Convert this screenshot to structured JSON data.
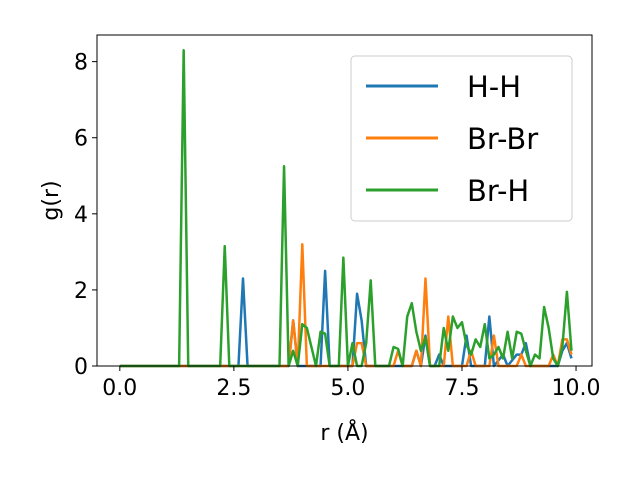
{
  "chart_data": {
    "type": "line",
    "xlabel": "r (Å)",
    "ylabel": "g(r)",
    "xlim": [
      -0.5,
      10.35
    ],
    "ylim": [
      0,
      8.7
    ],
    "xticks": [
      0.0,
      2.5,
      5.0,
      7.5,
      10.0
    ],
    "xtick_labels": [
      "0.0",
      "2.5",
      "5.0",
      "7.5",
      "10.0"
    ],
    "yticks": [
      0,
      2,
      4,
      6,
      8
    ],
    "ytick_labels": [
      "0",
      "2",
      "4",
      "6",
      "8"
    ],
    "grid": false,
    "legend_position": "upper right",
    "series": [
      {
        "name": "H-H",
        "color": "#1f77b4",
        "points": [
          [
            0.0,
            0
          ],
          [
            2.6,
            0
          ],
          [
            2.7,
            2.3
          ],
          [
            2.8,
            0
          ],
          [
            3.7,
            0
          ],
          [
            3.8,
            1.2
          ],
          [
            3.9,
            0
          ],
          [
            4.4,
            0
          ],
          [
            4.5,
            2.5
          ],
          [
            4.6,
            0
          ],
          [
            5.1,
            0
          ],
          [
            5.2,
            1.9
          ],
          [
            5.3,
            1.2
          ],
          [
            5.4,
            0
          ],
          [
            6.4,
            0
          ],
          [
            6.5,
            0.4
          ],
          [
            6.6,
            0
          ],
          [
            6.7,
            0.8
          ],
          [
            6.8,
            0
          ],
          [
            6.9,
            0
          ],
          [
            7.0,
            0.3
          ],
          [
            7.1,
            0
          ],
          [
            7.5,
            0
          ],
          [
            7.6,
            0.8
          ],
          [
            7.7,
            0
          ],
          [
            8.0,
            0
          ],
          [
            8.1,
            1.3
          ],
          [
            8.2,
            0
          ],
          [
            8.4,
            0.3
          ],
          [
            8.5,
            0
          ],
          [
            8.7,
            0.3
          ],
          [
            8.8,
            0.3
          ],
          [
            8.9,
            0.6
          ],
          [
            9.0,
            0
          ],
          [
            9.6,
            0
          ],
          [
            9.7,
            0.4
          ],
          [
            9.8,
            0.6
          ],
          [
            9.9,
            0.2
          ]
        ]
      },
      {
        "name": "Br-Br",
        "color": "#ff7f0e",
        "points": [
          [
            0.0,
            0
          ],
          [
            3.7,
            0
          ],
          [
            3.8,
            1.2
          ],
          [
            3.9,
            0
          ],
          [
            4.0,
            3.2
          ],
          [
            4.1,
            0
          ],
          [
            5.1,
            0
          ],
          [
            5.2,
            0.6
          ],
          [
            5.3,
            0.6
          ],
          [
            5.4,
            0
          ],
          [
            6.0,
            0
          ],
          [
            6.1,
            0.4
          ],
          [
            6.2,
            0
          ],
          [
            6.4,
            0
          ],
          [
            6.5,
            0.4
          ],
          [
            6.6,
            0
          ],
          [
            6.7,
            2.3
          ],
          [
            6.8,
            0
          ],
          [
            7.1,
            0
          ],
          [
            7.2,
            1.3
          ],
          [
            7.3,
            0
          ],
          [
            7.6,
            0
          ],
          [
            7.7,
            0.4
          ],
          [
            7.8,
            0
          ],
          [
            8.1,
            0
          ],
          [
            8.2,
            0.8
          ],
          [
            8.3,
            0
          ],
          [
            8.7,
            0
          ],
          [
            8.8,
            0.3
          ],
          [
            8.9,
            0
          ],
          [
            9.4,
            0
          ],
          [
            9.5,
            0.3
          ],
          [
            9.6,
            0
          ],
          [
            9.7,
            0.7
          ],
          [
            9.8,
            0.7
          ],
          [
            9.9,
            0.3
          ]
        ]
      },
      {
        "name": "Br-H",
        "color": "#2ca02c",
        "points": [
          [
            0.0,
            0
          ],
          [
            1.3,
            0
          ],
          [
            1.4,
            8.3
          ],
          [
            1.5,
            0
          ],
          [
            2.2,
            0
          ],
          [
            2.3,
            3.15
          ],
          [
            2.4,
            0
          ],
          [
            3.5,
            0
          ],
          [
            3.6,
            5.25
          ],
          [
            3.7,
            0
          ],
          [
            3.8,
            0.4
          ],
          [
            3.9,
            0
          ],
          [
            4.0,
            1.1
          ],
          [
            4.1,
            1.0
          ],
          [
            4.2,
            0.5
          ],
          [
            4.3,
            0
          ],
          [
            4.4,
            0.9
          ],
          [
            4.5,
            0.85
          ],
          [
            4.6,
            0
          ],
          [
            4.8,
            0
          ],
          [
            4.9,
            2.85
          ],
          [
            5.0,
            0
          ],
          [
            5.1,
            0.6
          ],
          [
            5.2,
            0
          ],
          [
            5.3,
            0
          ],
          [
            5.4,
            0.6
          ],
          [
            5.5,
            2.25
          ],
          [
            5.6,
            0
          ],
          [
            5.9,
            0
          ],
          [
            6.0,
            0.5
          ],
          [
            6.1,
            0.45
          ],
          [
            6.2,
            0
          ],
          [
            6.3,
            1.3
          ],
          [
            6.4,
            1.65
          ],
          [
            6.5,
            0.9
          ],
          [
            6.6,
            0.4
          ],
          [
            6.7,
            0.75
          ],
          [
            6.8,
            0
          ],
          [
            7.0,
            0
          ],
          [
            7.1,
            1.0
          ],
          [
            7.2,
            0.4
          ],
          [
            7.3,
            1.3
          ],
          [
            7.4,
            1.0
          ],
          [
            7.5,
            1.15
          ],
          [
            7.6,
            0.55
          ],
          [
            7.7,
            0.3
          ],
          [
            7.8,
            0.7
          ],
          [
            7.9,
            0.5
          ],
          [
            8.0,
            1.1
          ],
          [
            8.1,
            0.2
          ],
          [
            8.2,
            0.3
          ],
          [
            8.3,
            0.5
          ],
          [
            8.4,
            0.2
          ],
          [
            8.5,
            0.9
          ],
          [
            8.6,
            0.2
          ],
          [
            8.7,
            0.9
          ],
          [
            8.8,
            0.85
          ],
          [
            8.9,
            0.4
          ],
          [
            9.0,
            0
          ],
          [
            9.1,
            0.3
          ],
          [
            9.2,
            0.2
          ],
          [
            9.3,
            1.55
          ],
          [
            9.4,
            1.0
          ],
          [
            9.5,
            0.2
          ],
          [
            9.6,
            0
          ],
          [
            9.7,
            0.5
          ],
          [
            9.8,
            1.95
          ],
          [
            9.9,
            0.4
          ]
        ]
      }
    ]
  }
}
